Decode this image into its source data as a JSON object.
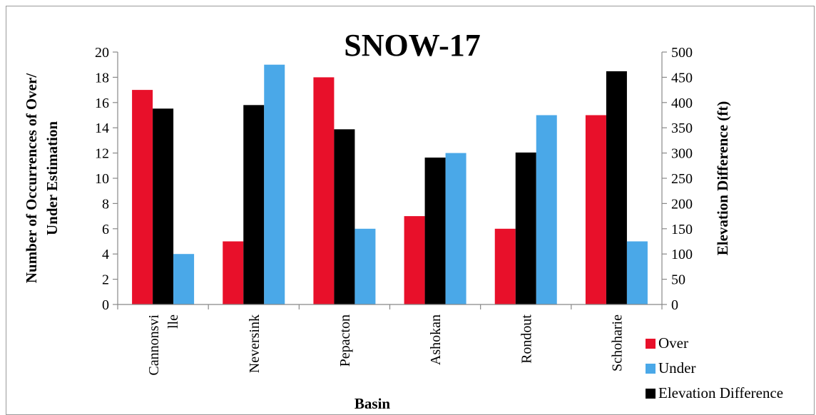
{
  "chart_data": {
    "type": "bar",
    "title": "SNOW-17",
    "xlabel": "Basin",
    "ylabel_line1": "Number of Occurrences of Over/",
    "ylabel_line2": "Under Estimation",
    "y2label": "Elevation Difference (ft)",
    "categories": [
      "Cannonsville",
      "Neversink",
      "Pepacton",
      "Ashokan",
      "Rondout",
      "Schoharie"
    ],
    "category_label_lines": [
      [
        "Cannonsvi",
        "lle"
      ],
      [
        "Neversink"
      ],
      [
        "Pepacton"
      ],
      [
        "Ashokan"
      ],
      [
        "Rondout"
      ],
      [
        "Schoharie"
      ]
    ],
    "ylim": [
      0,
      20
    ],
    "y_ticks": [
      "0",
      "2",
      "4",
      "6",
      "8",
      "10",
      "12",
      "14",
      "16",
      "18",
      "20"
    ],
    "y2lim": [
      0,
      500
    ],
    "y2_ticks": [
      "0",
      "50",
      "100",
      "150",
      "200",
      "250",
      "300",
      "350",
      "400",
      "450",
      "500"
    ],
    "series": [
      {
        "name": "Over",
        "axis": "left",
        "color": "#e8102a",
        "values": [
          17,
          5,
          18,
          7,
          6,
          15
        ]
      },
      {
        "name": "Elevation Difference",
        "axis": "right",
        "color": "#000000",
        "values": [
          388,
          395,
          347,
          291,
          301,
          462
        ]
      },
      {
        "name": "Under",
        "axis": "left",
        "color": "#4aa8e8",
        "values": [
          4,
          19,
          6,
          12,
          15,
          5
        ]
      }
    ],
    "legend": {
      "position": "bottom-right",
      "entries": [
        {
          "label": "Over",
          "color": "#e8102a"
        },
        {
          "label": "Under",
          "color": "#4aa8e8"
        },
        {
          "label": "Elevation Difference",
          "color": "#000000"
        }
      ]
    },
    "grid": false
  }
}
